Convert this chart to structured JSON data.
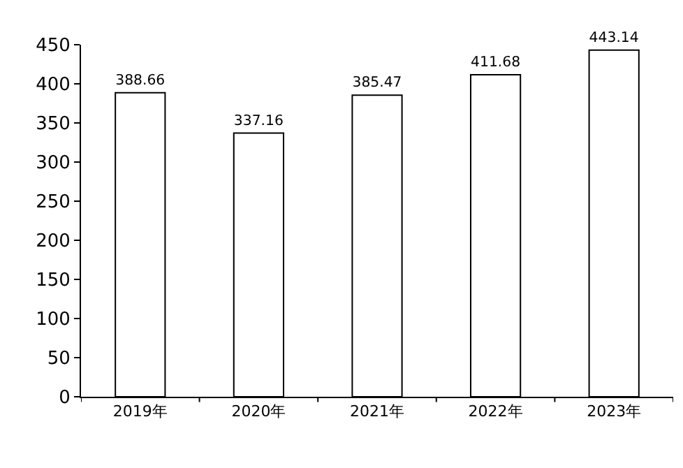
{
  "chart_data": {
    "type": "bar",
    "categories": [
      "2019年",
      "2020年",
      "2021年",
      "2022年",
      "2023年"
    ],
    "values": [
      388.66,
      337.16,
      385.47,
      411.68,
      443.14
    ],
    "color": "#ffffff",
    "ylim": [
      0,
      450
    ],
    "yticks": [
      0,
      50,
      100,
      150,
      200,
      250,
      300,
      350,
      400,
      450
    ],
    "grid": false,
    "legend": false,
    "data_labels": true
  }
}
